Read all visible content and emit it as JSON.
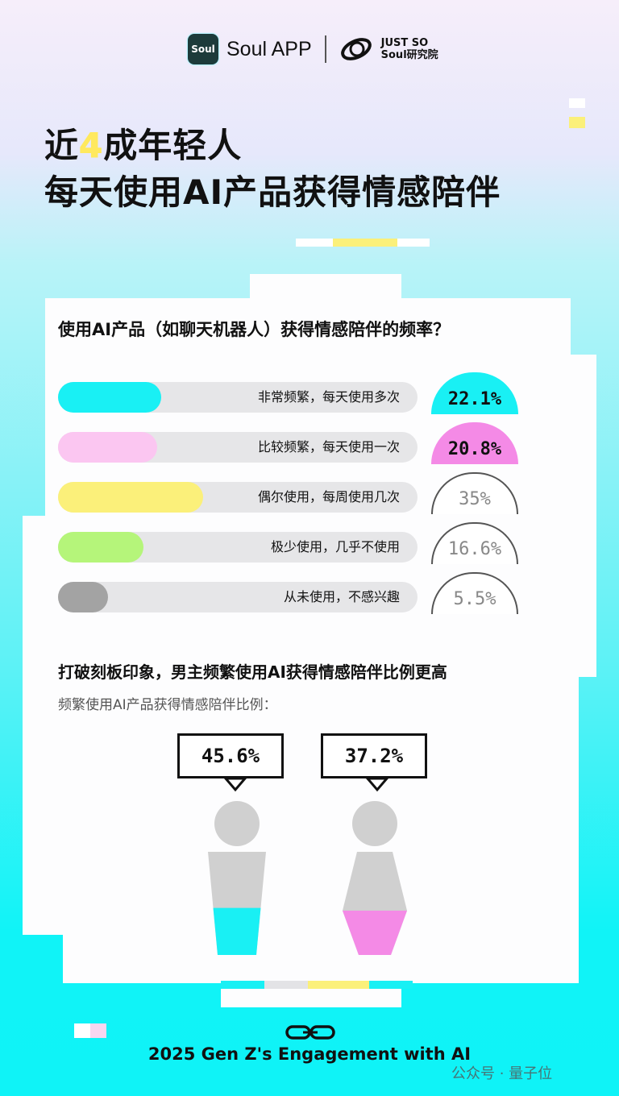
{
  "header": {
    "brand": "Soul APP",
    "institute_line1": "JUST SO",
    "institute_line2": "Soul研究院",
    "app_icon_text": "Soul"
  },
  "title": {
    "line1_pre": "近",
    "line1_highlight": "4",
    "line1_post": "成年轻人",
    "line2": "每天使用AI产品获得情感陪伴"
  },
  "chart_data": [
    {
      "type": "bar",
      "title": "使用AI产品（如聊天机器人）获得情感陪伴的频率？",
      "categories": [
        "非常频繁，每天使用多次",
        "比较频繁，每天使用一次",
        "偶尔使用，每周使用几次",
        "极少使用，几乎不使用",
        "从未使用，不感兴趣"
      ],
      "values": [
        22.1,
        20.8,
        35,
        16.6,
        5.5
      ],
      "labels": [
        "22.1%",
        "20.8%",
        "35%",
        "16.6%",
        "5.5%"
      ],
      "colors": [
        "#19f0f4",
        "#fbc6f1",
        "#fbf07a",
        "#b5f57a",
        "#a3a3a3"
      ],
      "badge_colors": [
        "#19f0f4",
        "#f48ae6",
        null,
        null,
        null
      ]
    },
    {
      "type": "bar",
      "title": "打破刻板印象，男主频繁使用AI获得情感陪伴比例更高",
      "subtitle": "频繁使用AI产品获得情感陪伴比例：",
      "categories": [
        "男",
        "女"
      ],
      "values": [
        45.6,
        37.2
      ],
      "labels": [
        "45.6%",
        "37.2%"
      ],
      "colors": [
        "#19f0f4",
        "#f48ae6"
      ]
    }
  ],
  "footer": {
    "caption": "2025 Gen Z's Engagement with AI",
    "watermark": "公众号 · 量子位"
  }
}
